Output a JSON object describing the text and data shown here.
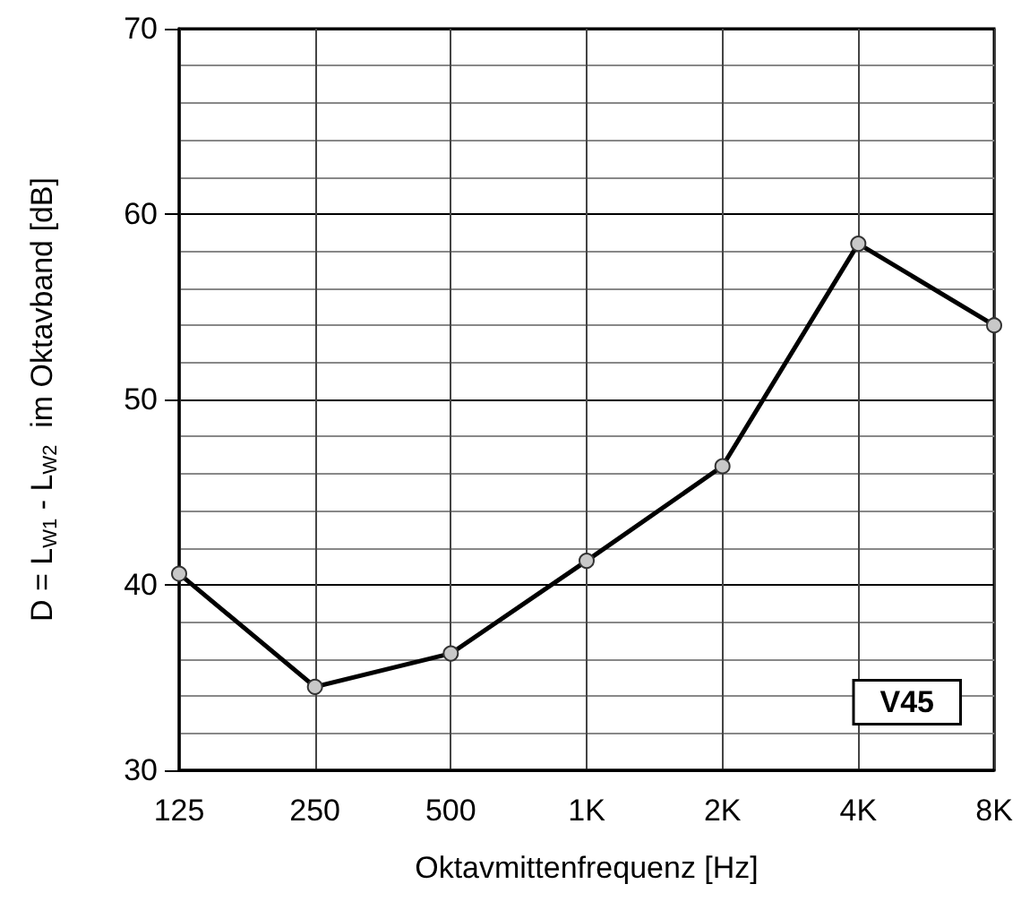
{
  "chart_data": {
    "type": "line",
    "xlabel": "Oktavmittenfrequenz [Hz]",
    "ylabel": "D = L$_{W1}$ - L$_{W2}$  im Oktavband [dB]",
    "categories": [
      "125",
      "250",
      "500",
      "1K",
      "2K",
      "4K",
      "8K"
    ],
    "series": [
      {
        "color": "#000000",
        "values": [
          40.6,
          34.5,
          36.3,
          41.3,
          46.4,
          58.4,
          54.0
        ]
      }
    ],
    "ylim": [
      30,
      70
    ],
    "yticks": [
      30,
      {
        "value": 32,
        "label": null
      },
      {
        "value": 34,
        "label": null
      },
      {
        "value": 36,
        "label": null
      },
      {
        "value": 38,
        "label": null
      },
      40,
      {
        "value": 42,
        "label": null
      },
      {
        "value": 44,
        "label": null
      },
      {
        "value": 46,
        "label": null
      },
      {
        "value": 48,
        "label": null
      },
      50,
      {
        "value": 52,
        "label": null
      },
      {
        "value": 54,
        "label": null
      },
      {
        "value": 56,
        "label": null
      },
      {
        "value": 58,
        "label": null
      },
      60,
      {
        "value": 62,
        "label": null
      },
      {
        "value": 64,
        "label": null
      },
      {
        "value": 66,
        "label": null
      },
      {
        "value": 68,
        "label": null
      },
      70
    ],
    "grid": true,
    "marker": "circle",
    "line_style": "solid",
    "annotations": [
      "V45"
    ]
  }
}
